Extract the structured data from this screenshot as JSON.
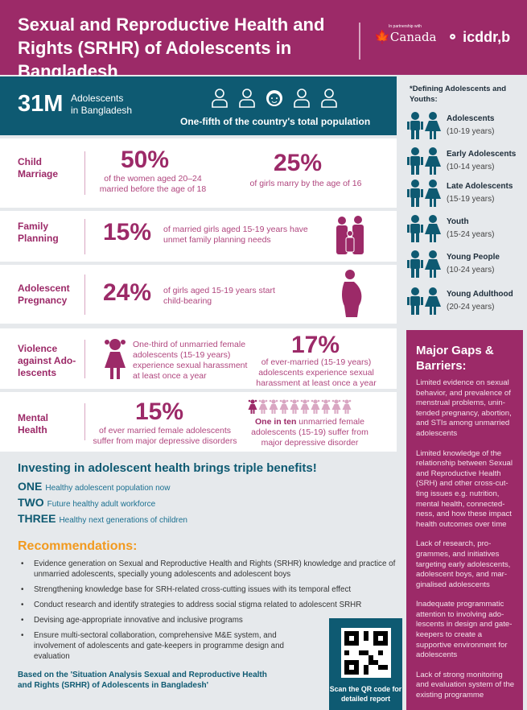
{
  "header": {
    "title": "Sexual and Reproductive Health and Rights (SRHR) of Adolescents in Bangladesh",
    "partner_small": "In partnership with",
    "partner": "Canada",
    "org": "icddr,b"
  },
  "summary": {
    "number": "31M",
    "label_line1": "Adolescents",
    "label_line2": "in Bangladesh",
    "caption": "One-fifth of the country's total population"
  },
  "stats": [
    {
      "category": "Child Marriage",
      "items": [
        {
          "value": "50%",
          "text": "of the women aged 20–24 married before the age of 18"
        },
        {
          "value": "25%",
          "text": "of girls marry by the age of 16"
        }
      ]
    },
    {
      "category": "Family Planning",
      "items": [
        {
          "value": "15%",
          "text": "of married girls aged 15-19 years have unmet family planning needs"
        }
      ]
    },
    {
      "category": "Adolescent Pregnancy",
      "items": [
        {
          "value": "24%",
          "text": "of girls aged 15-19 years start child-bearing"
        }
      ]
    },
    {
      "category": "Violence against Ado-lescents",
      "items": [
        {
          "text": "One-third of unmarried female adolescents (15-19 years) experience sexual harassment at least once a year"
        },
        {
          "value": "17%",
          "text": "of ever-married (15-19 years) adolescents experience sexual harassment at least once a year"
        }
      ]
    },
    {
      "category": "Mental Health",
      "items": [
        {
          "value": "15%",
          "text": "of ever married female adolescents suffer from major depressive disorders"
        },
        {
          "bold": "One in ten",
          "text": "unmarried female adolescents (15-19) suffer from major depressive disorder",
          "ratio": 0.1
        }
      ]
    }
  ],
  "definitions": {
    "title": "*Defining Adolescents and Youths:",
    "items": [
      {
        "label": "Adolescents",
        "range": "(10-19 years)"
      },
      {
        "label": "Early Adolescents",
        "range": "(10-14 years)"
      },
      {
        "label": "Late Adolescents",
        "range": "(15-19 years)"
      },
      {
        "label": "Youth",
        "range": "(15-24 years)"
      },
      {
        "label": "Young People",
        "range": "(10-24 years)"
      },
      {
        "label": "Young Adulthood",
        "range": "(20-24 years)"
      }
    ]
  },
  "gaps": {
    "title": "Major Gaps & Barriers:",
    "items": [
      "Limited evidence on sexual behavior, and prevalence of menstrual problems, unin-tended pregnancy, abortion, and STIs among unmarried adolescents",
      "Limited knowledge of the relationship between Sexual and Reproductive Health (SRH) and other cross-cut-ting issues e.g. nutrition, mental health, connected-ness, and how these impact health outcomes over time",
      "Lack of research, pro-grammes, and initiatives targeting early adolescents, adolescent boys, and mar-ginalised adolescents",
      "Inadequate programmatic attention to involving ado-lescents in design and gate-keepers to create a supportive environment for adolescents",
      "Lack of strong monitoring and evaluation system of the existing programme"
    ]
  },
  "benefits": {
    "title": "Investing in adolescent health brings triple benefits!",
    "items": [
      {
        "num": "ONE",
        "text": "Healthy adolescent population now"
      },
      {
        "num": "TWO",
        "text": "Future healthy adult workforce"
      },
      {
        "num": "THREE",
        "text": "Healthy next generations of children"
      }
    ]
  },
  "recommendations": {
    "title": "Recommendations:",
    "items": [
      "Evidence generation on Sexual and Reproductive Health and Rights (SRHR) knowledge and practice of unmarried adolescents, specially young adolescents and adolescent boys",
      "Strengthening knowledge base for SRH-related cross-cutting issues with its temporal effect",
      "Conduct research and identify strategies to address social stigma related to adolescent SRHR",
      "Devising age-appropriate innovative and inclusive programs",
      "Ensure multi-sectoral collaboration, comprehensive M&E system, and involvement of adolescents and gate-keepers in programme design and evaluation"
    ]
  },
  "source": "Based on the 'Situation Analysis Sexual and Reproductive Health and Rights (SRHR) of Adolescents in Bangladesh'",
  "qr": {
    "caption": "Scan the QR code for detailed report"
  },
  "colors": {
    "purple": "#9c2a68",
    "teal": "#0e5a72",
    "orange": "#f29a1f"
  }
}
